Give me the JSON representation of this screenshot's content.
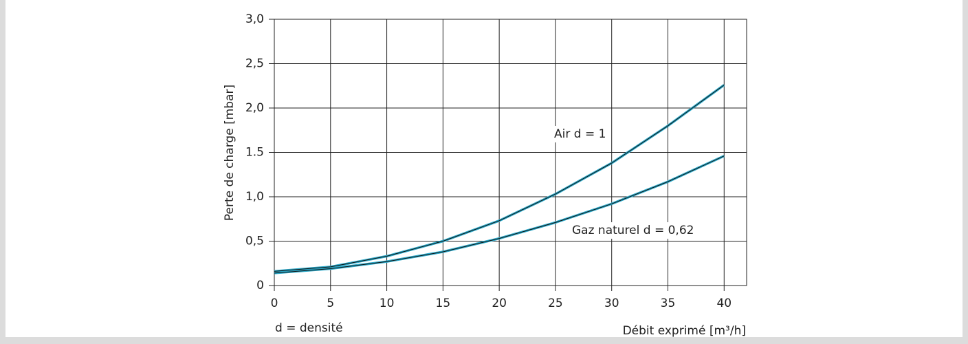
{
  "chart_data": {
    "type": "line",
    "xlabel": "Débit exprimé [m³/h]",
    "ylabel": "Perte de charge [mbar]",
    "x": [
      0,
      5,
      10,
      15,
      20,
      25,
      30,
      35,
      40
    ],
    "series": [
      {
        "name": "Air d = 1",
        "color": "#2aa8c8",
        "values": [
          0.16,
          0.21,
          0.33,
          0.5,
          0.73,
          1.03,
          1.38,
          1.8,
          2.26
        ]
      },
      {
        "name": "Gaz naturel d = 0,62",
        "color": "#2aa8c8",
        "values": [
          0.14,
          0.19,
          0.27,
          0.38,
          0.53,
          0.71,
          0.92,
          1.17,
          1.46
        ]
      }
    ],
    "annotations": [
      "d = densité"
    ],
    "xlim": [
      0,
      42
    ],
    "xticks": [
      0,
      5,
      10,
      15,
      20,
      25,
      30,
      35,
      40
    ],
    "ylim": [
      0,
      3
    ],
    "yticks": [
      0,
      {
        "value": 0.5,
        "label": "0,5"
      },
      {
        "value": 1,
        "label": "1,0"
      },
      1.5,
      {
        "value": 2,
        "label": "2,0"
      },
      {
        "value": 2.5,
        "label": "2,5"
      },
      {
        "value": 3,
        "label": "3,0"
      }
    ],
    "grid": true
  }
}
